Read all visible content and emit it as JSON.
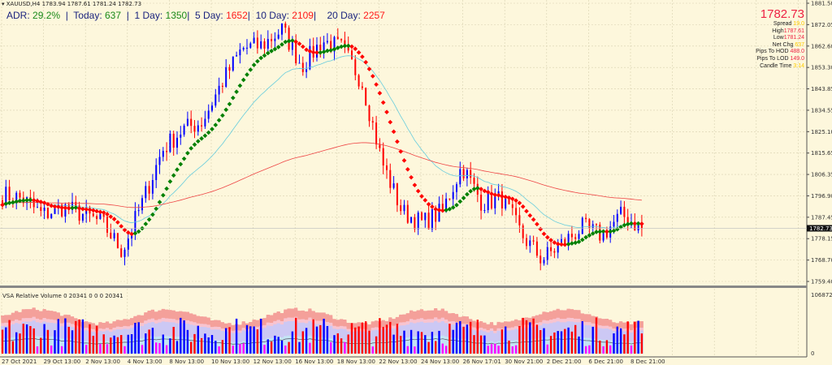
{
  "header": {
    "symbol_line": "XAUUSD,H4  1783.94 1787.61 1781.24 1782.73"
  },
  "adr": {
    "adr_label": "ADR:",
    "adr_value": "29.2%",
    "today_label": "Today:",
    "today_value": "637",
    "d1_label": "1 Day:",
    "d1_value": "1350",
    "d5_label": "5 Day:",
    "d5_value": "1652",
    "d10_label": "10 Day:",
    "d10_value": "2109",
    "d20_label": "20 Day:",
    "d20_value": "2257",
    "sep": "|"
  },
  "info": {
    "price": "1782.73",
    "spread_label": "Spread",
    "spread": "19.0",
    "high_label": "High",
    "high": "1787.61",
    "low_label": "Low",
    "low": "1781.24",
    "netchg_label": "Net Chg",
    "netchg": "637",
    "hod_label": "Pips To HOD",
    "hod": "488.0",
    "lod_label": "Pips To LOD",
    "lod": "149.0",
    "candle_label": "Candle Time",
    "candle": "3:14"
  },
  "volume_panel": {
    "title": "VSA Relative Volume 0 20341 0 0 0 20341",
    "axis_max": "106872",
    "axis_min": "0"
  },
  "colors": {
    "bull": "#0000ff",
    "bear": "#ff0000",
    "ma_up": "#008000",
    "ma_down": "#ff0000",
    "ma_mid": "#66ccdd",
    "ma_slow": "#ee4444",
    "bg": "#fdf7dc",
    "vol_climax": "#ff00ff"
  },
  "chart_data": {
    "type": "candlestick",
    "symbol": "XAUUSD",
    "timeframe": "H4",
    "y_ticks": [
      "1881.50",
      "1872.05",
      "1862.60",
      "1853.30",
      "1843.85",
      "1834.55",
      "1825.10",
      "1815.65",
      "1806.35",
      "1796.90",
      "1787.45",
      "1778.15",
      "1768.70",
      "1759.40"
    ],
    "ylim": [
      1759.4,
      1881.5
    ],
    "current_price": "1782.73",
    "x_ticks": [
      "27 Oct 2021",
      "29 Oct 13:00",
      "2 Nov 13:00",
      "4 Nov 13:00",
      "8 Nov 13:00",
      "10 Nov 13:00",
      "12 Nov 13:00",
      "16 Nov 13:00",
      "18 Nov 13:00",
      "22 Nov 13:00",
      "24 Nov 13:00",
      "26 Nov 17:01",
      "30 Nov 21:00",
      "2 Dec 21:00",
      "6 Dec 21:00",
      "8 Dec 21:00"
    ],
    "approx_close_path": [
      1797.5,
      1795.7,
      1788.6,
      1792,
      1789,
      1785,
      1772.6,
      1794,
      1817,
      1826,
      1829.5,
      1847,
      1861.6,
      1863,
      1870,
      1854,
      1865,
      1861.6,
      1847,
      1811.7,
      1790,
      1785,
      1790,
      1810,
      1794,
      1795.7,
      1779.7,
      1769,
      1776,
      1783,
      1779.7,
      1788.6,
      1782.7
    ],
    "grid": true
  }
}
